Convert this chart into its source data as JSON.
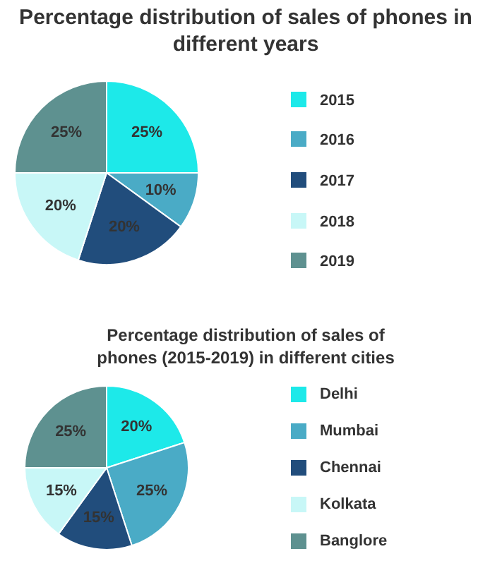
{
  "chart_data": [
    {
      "type": "pie",
      "title": "Percentage distribution of sales of phones in different years",
      "categories": [
        "2015",
        "2016",
        "2017",
        "2018",
        "2019"
      ],
      "values": [
        25,
        10,
        20,
        20,
        25
      ],
      "colors": [
        "#1de9e9",
        "#4aabc6",
        "#214d7c",
        "#c8f7f7",
        "#5e9190"
      ],
      "value_labels": [
        "25%",
        "10%",
        "20%",
        "20%",
        "25%"
      ],
      "legend": "right"
    },
    {
      "type": "pie",
      "title": "Percentage distribution of sales of phones (2015-2019) in different cities",
      "categories": [
        "Delhi",
        "Mumbai",
        "Chennai",
        "Kolkata",
        "Banglore"
      ],
      "values": [
        20,
        25,
        15,
        15,
        25
      ],
      "colors": [
        "#1de9e9",
        "#4aabc6",
        "#214d7c",
        "#c8f7f7",
        "#5e9190"
      ],
      "value_labels": [
        "20%",
        "25%",
        "15%",
        "15%",
        "25%"
      ],
      "legend": "right"
    }
  ]
}
